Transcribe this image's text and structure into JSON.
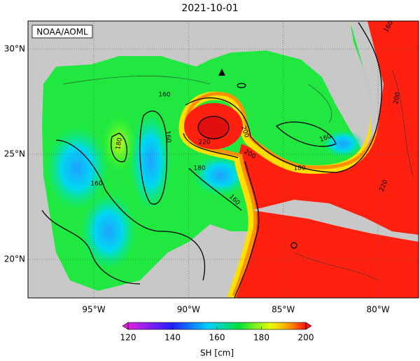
{
  "title": "2021-10-01",
  "credit": "NOAA/AOML",
  "map": {
    "lon_ticks": [
      {
        "value": -95,
        "label": "95°W"
      },
      {
        "value": -90,
        "label": "90°W"
      },
      {
        "value": -85,
        "label": "85°W"
      },
      {
        "value": -80,
        "label": "80°W"
      }
    ],
    "lat_ticks": [
      {
        "value": 30,
        "label": "30°N"
      },
      {
        "value": 25,
        "label": "25°N"
      },
      {
        "value": 20,
        "label": "20°N"
      }
    ],
    "contour_labels": [
      180,
      160,
      160,
      160,
      220,
      200,
      200,
      180,
      160,
      180,
      160,
      200,
      160,
      220
    ]
  },
  "colorbar": {
    "label": "SH [cm]",
    "range": [
      120,
      200
    ],
    "ticks": [
      120,
      140,
      160,
      180,
      200
    ]
  }
}
